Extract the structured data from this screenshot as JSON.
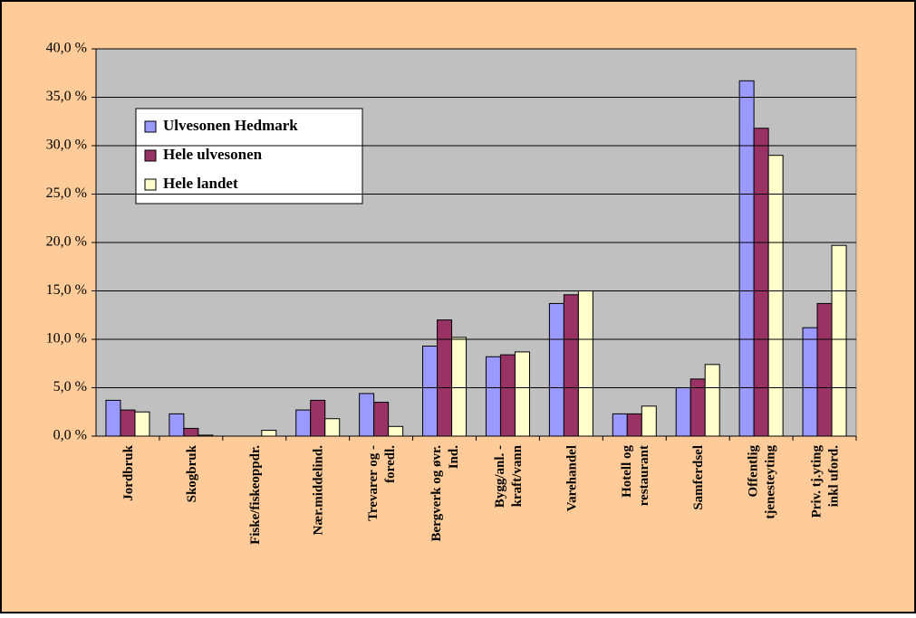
{
  "chart_data": {
    "type": "bar",
    "categories": [
      "Jordbruk",
      "Skogbruk",
      "Fiske/fiskeoppdr.",
      "Nær.middelind.",
      "Trevarer og -\nforedl.",
      "Bergverk og øvr.\nInd.",
      "Bygg/anl. -\nkraft/vann",
      "Varehandel",
      "Hotell og\nrestaurant",
      "Samferdsel",
      "Offentlig\ntjenesteyting",
      "Priv. tj.yting\ninkl uford."
    ],
    "series": [
      {
        "name": "Ulvesonen Hedmark",
        "color": "#9999ff",
        "values": [
          3.7,
          2.3,
          0,
          2.7,
          4.4,
          9.3,
          8.2,
          13.7,
          2.3,
          5.0,
          36.7,
          11.2
        ]
      },
      {
        "name": "Hele ulvesonen",
        "color": "#993366",
        "values": [
          2.7,
          0.8,
          0,
          3.7,
          3.5,
          12.0,
          8.4,
          14.6,
          2.3,
          5.9,
          31.8,
          13.7
        ]
      },
      {
        "name": "Hele landet",
        "color": "#ffffcc",
        "values": [
          2.5,
          0.1,
          0.6,
          1.8,
          1.0,
          10.2,
          8.7,
          15.0,
          3.1,
          7.4,
          29.0,
          19.7
        ]
      }
    ],
    "ylim": [
      0,
      40
    ],
    "yticks": [
      {
        "value": 0,
        "label": "0,0 %"
      },
      {
        "value": 5,
        "label": "5,0 %"
      },
      {
        "value": 10,
        "label": "10,0 %"
      },
      {
        "value": 15,
        "label": "15,0 %"
      },
      {
        "value": 20,
        "label": "20,0 %"
      },
      {
        "value": 25,
        "label": "25,0 %"
      },
      {
        "value": 30,
        "label": "30,0 %"
      },
      {
        "value": 35,
        "label": "35,0 %"
      },
      {
        "value": 40,
        "label": "40,0 %"
      }
    ],
    "grid": true
  }
}
